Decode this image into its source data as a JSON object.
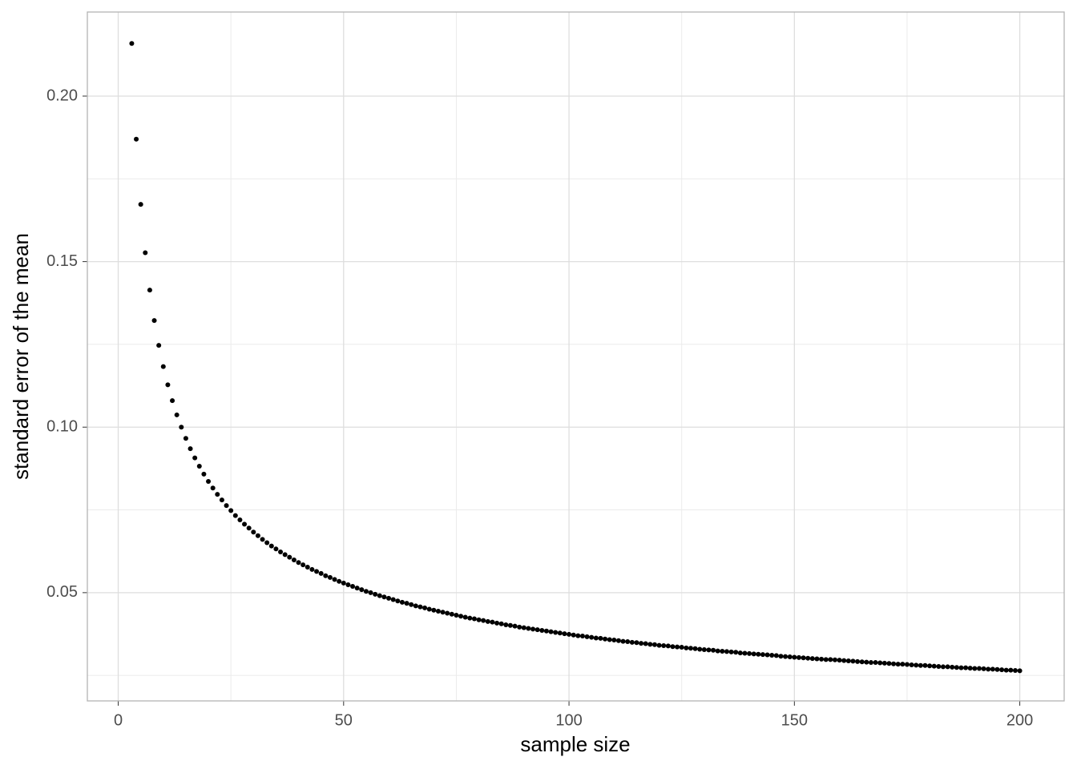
{
  "chart_data": {
    "type": "scatter",
    "x_label": "sample size",
    "y_label": "standard error of the mean",
    "x": [
      3,
      4,
      5,
      6,
      7,
      8,
      9,
      10,
      11,
      12,
      13,
      14,
      15,
      16,
      17,
      18,
      19,
      20,
      21,
      22,
      23,
      24,
      25,
      26,
      27,
      28,
      29,
      30,
      31,
      32,
      33,
      34,
      35,
      36,
      37,
      38,
      39,
      40,
      41,
      42,
      43,
      44,
      45,
      46,
      47,
      48,
      49,
      50,
      51,
      52,
      53,
      54,
      55,
      56,
      57,
      58,
      59,
      60,
      61,
      62,
      63,
      64,
      65,
      66,
      67,
      68,
      69,
      70,
      71,
      72,
      73,
      74,
      75,
      76,
      77,
      78,
      79,
      80,
      81,
      82,
      83,
      84,
      85,
      86,
      87,
      88,
      89,
      90,
      91,
      92,
      93,
      94,
      95,
      96,
      97,
      98,
      99,
      100,
      101,
      102,
      103,
      104,
      105,
      106,
      107,
      108,
      109,
      110,
      111,
      112,
      113,
      114,
      115,
      116,
      117,
      118,
      119,
      120,
      121,
      122,
      123,
      124,
      125,
      126,
      127,
      128,
      129,
      130,
      131,
      132,
      133,
      134,
      135,
      136,
      137,
      138,
      139,
      140,
      141,
      142,
      143,
      144,
      145,
      146,
      147,
      148,
      149,
      150,
      151,
      152,
      153,
      154,
      155,
      156,
      157,
      158,
      159,
      160,
      161,
      162,
      163,
      164,
      165,
      166,
      167,
      168,
      169,
      170,
      171,
      172,
      173,
      174,
      175,
      176,
      177,
      178,
      179,
      180,
      181,
      182,
      183,
      184,
      185,
      186,
      187,
      188,
      189,
      190,
      191,
      192,
      193,
      194,
      195,
      196,
      197,
      198,
      199,
      200
    ],
    "values": [
      0.2159,
      0.187,
      0.1673,
      0.1527,
      0.1414,
      0.1322,
      0.1247,
      0.1183,
      0.1128,
      0.108,
      0.1037,
      0.1,
      0.0966,
      0.0935,
      0.0907,
      0.0882,
      0.0858,
      0.0836,
      0.0816,
      0.0797,
      0.078,
      0.0763,
      0.0748,
      0.0733,
      0.072,
      0.0707,
      0.0695,
      0.0683,
      0.0672,
      0.0661,
      0.0651,
      0.0641,
      0.0632,
      0.0623,
      0.0615,
      0.0607,
      0.0599,
      0.0591,
      0.0584,
      0.0577,
      0.057,
      0.0564,
      0.0558,
      0.0551,
      0.0546,
      0.054,
      0.0534,
      0.0529,
      0.0524,
      0.0519,
      0.0514,
      0.0509,
      0.0504,
      0.05,
      0.0495,
      0.0491,
      0.0487,
      0.0483,
      0.0479,
      0.0475,
      0.0471,
      0.0468,
      0.0464,
      0.046,
      0.0457,
      0.0454,
      0.045,
      0.0447,
      0.0444,
      0.0441,
      0.0438,
      0.0435,
      0.0432,
      0.0429,
      0.0426,
      0.0423,
      0.0421,
      0.0418,
      0.0416,
      0.0413,
      0.0411,
      0.0408,
      0.0406,
      0.0403,
      0.0401,
      0.0399,
      0.0396,
      0.0394,
      0.0392,
      0.039,
      0.0388,
      0.0386,
      0.0384,
      0.0382,
      0.038,
      0.0378,
      0.0376,
      0.0374,
      0.0372,
      0.037,
      0.0369,
      0.0367,
      0.0365,
      0.0363,
      0.0362,
      0.036,
      0.0358,
      0.0357,
      0.0355,
      0.0353,
      0.0352,
      0.035,
      0.0349,
      0.0347,
      0.0346,
      0.0344,
      0.0343,
      0.0341,
      0.034,
      0.0339,
      0.0337,
      0.0336,
      0.0335,
      0.0333,
      0.0332,
      0.0331,
      0.0329,
      0.0328,
      0.0327,
      0.0326,
      0.0324,
      0.0323,
      0.0322,
      0.0321,
      0.032,
      0.0318,
      0.0317,
      0.0316,
      0.0315,
      0.0314,
      0.0313,
      0.0312,
      0.0311,
      0.031,
      0.0308,
      0.0307,
      0.0306,
      0.0305,
      0.0304,
      0.0303,
      0.0302,
      0.0301,
      0.03,
      0.0299,
      0.0298,
      0.0298,
      0.0297,
      0.0296,
      0.0295,
      0.0294,
      0.0293,
      0.0292,
      0.0291,
      0.029,
      0.0289,
      0.0289,
      0.0288,
      0.0287,
      0.0286,
      0.0285,
      0.0284,
      0.0284,
      0.0283,
      0.0282,
      0.0281,
      0.028,
      0.028,
      0.0279,
      0.0278,
      0.0277,
      0.0276,
      0.0276,
      0.0275,
      0.0274,
      0.0273,
      0.0273,
      0.0272,
      0.0271,
      0.0271,
      0.027,
      0.0269,
      0.0269,
      0.0268,
      0.0267,
      0.0266,
      0.0266,
      0.0265,
      0.0264
    ],
    "color": "#000000",
    "xlim": [
      -6.85,
      209.85
    ],
    "ylim": [
      0.0173,
      0.2254
    ],
    "xticks": [
      0,
      50,
      100,
      150,
      200
    ],
    "yticks": [
      {
        "value": 0.05,
        "label": "0.05"
      },
      {
        "value": 0.1,
        "label": "0.10"
      },
      {
        "value": 0.15,
        "label": "0.15"
      },
      {
        "value": 0.2,
        "label": "0.20"
      }
    ],
    "xminor": [
      25,
      75,
      125,
      175
    ],
    "yminor": [
      0.025,
      0.075,
      0.125,
      0.175
    ],
    "grid": true
  }
}
